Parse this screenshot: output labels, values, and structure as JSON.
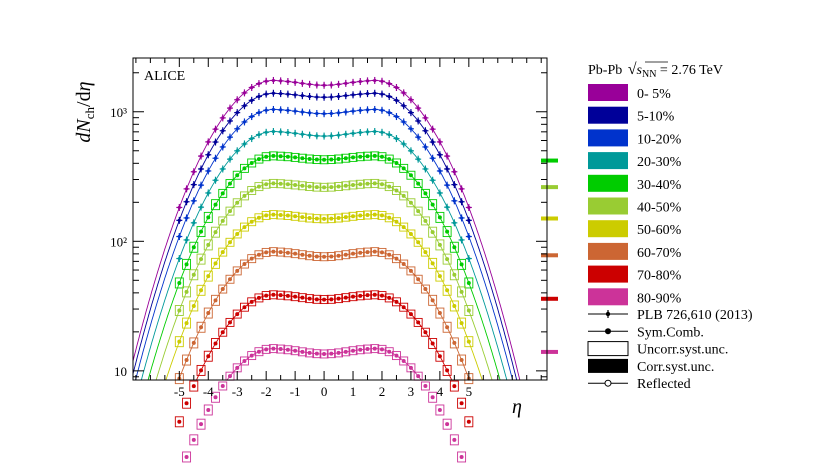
{
  "chart_data": {
    "type": "scatter",
    "experiment_label": "ALICE",
    "xlabel": "η",
    "ylabel": "dN_ch/dη",
    "xlim": [
      -6.6,
      7.7
    ],
    "ylim": [
      8.5,
      2600
    ],
    "log_y": true,
    "x_ticks": [
      -5,
      -4,
      -3,
      -2,
      -1,
      0,
      1,
      2,
      3,
      4,
      5
    ],
    "x_tick_labels": [
      "-5",
      "-4",
      "-3",
      "-2",
      "-1",
      "0",
      "1",
      "2",
      "3",
      "4",
      "5"
    ],
    "y_ticks": [
      10,
      100,
      1000
    ],
    "y_tick_labels": [
      "10",
      "10²",
      "10³"
    ],
    "system_label": "Pb-Pb √s_NN = 2.76 TeV",
    "legend_position": "right",
    "series": [
      {
        "name": "0- 5%",
        "color": "#990099",
        "y_mid": 1601,
        "y_peak": 1760,
        "y_edge": 1090,
        "width": 6.4,
        "x_min": -5.0,
        "x_max": 5.0,
        "marker": "plus",
        "right_bar": null
      },
      {
        "name": "5-10%",
        "color": "#000099",
        "y_mid": 1294,
        "y_peak": 1400,
        "y_edge": 870,
        "width": 6.4,
        "x_min": -5.0,
        "x_max": 5.0,
        "marker": "plus",
        "right_bar": null
      },
      {
        "name": "10-20%",
        "color": "#0033cc",
        "y_mid": 966,
        "y_peak": 1050,
        "y_edge": 650,
        "width": 6.4,
        "x_min": -5.0,
        "x_max": 5.0,
        "marker": "plus",
        "right_bar": null
      },
      {
        "name": "20-30%",
        "color": "#009999",
        "y_mid": 649,
        "y_peak": 710,
        "y_edge": 440,
        "width": 6.4,
        "x_min": -5.0,
        "x_max": 5.0,
        "marker": "plus",
        "right_bar": null
      },
      {
        "name": "30-40%",
        "color": "#00cc00",
        "y_mid": 426,
        "y_peak": 460,
        "y_edge": 300,
        "width": 6.4,
        "x_min": -5.0,
        "x_max": 5.0,
        "marker": "box",
        "right_bar": 420
      },
      {
        "name": "40-50%",
        "color": "#99cc33",
        "y_mid": 261,
        "y_peak": 282,
        "y_edge": 185,
        "width": 6.4,
        "x_min": -5.0,
        "x_max": 5.0,
        "marker": "box",
        "right_bar": 262
      },
      {
        "name": "50-60%",
        "color": "#cccc00",
        "y_mid": 149,
        "y_peak": 162,
        "y_edge": 106,
        "width": 6.4,
        "x_min": -5.0,
        "x_max": 5.0,
        "marker": "box",
        "right_bar": 150
      },
      {
        "name": "60-70%",
        "color": "#cc6633",
        "y_mid": 76,
        "y_peak": 84,
        "y_edge": 55,
        "width": 6.4,
        "x_min": -5.0,
        "x_max": 5.0,
        "marker": "box",
        "right_bar": 78
      },
      {
        "name": "70-80%",
        "color": "#cc0000",
        "y_mid": 35.5,
        "y_peak": 39,
        "y_edge": 26,
        "width": 6.4,
        "x_min": -5.0,
        "x_max": 5.0,
        "marker": "box",
        "right_bar": 36
      },
      {
        "name": "80-90%",
        "color": "#cc3399",
        "y_mid": 13.5,
        "y_peak": 15,
        "y_edge": 10.5,
        "width": 6.4,
        "x_min": -5.0,
        "x_max": 5.0,
        "marker": "box",
        "right_bar": 14
      }
    ],
    "marker_legend": [
      {
        "name": "PLB 726,610 (2013)",
        "symbol": "plus-line"
      },
      {
        "name": "Sym.Comb.",
        "symbol": "dot-line"
      },
      {
        "name": "Uncorr.syst.unc.",
        "symbol": "open-box"
      },
      {
        "name": "Corr.syst.unc.",
        "symbol": "filled-box"
      },
      {
        "name": "Reflected",
        "symbol": "circle-line"
      }
    ]
  }
}
